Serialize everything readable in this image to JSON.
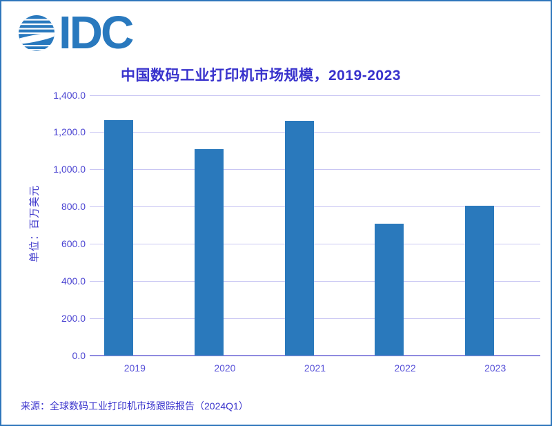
{
  "logo": {
    "text": "IDC",
    "color": "#2979BE",
    "globe_icon": "idc-striped-globe"
  },
  "chart_data": {
    "type": "bar",
    "title": "中国数码工业打印机市场规模，2019-2023",
    "ylabel": "单位：百万美元",
    "xlabel": "",
    "categories": [
      "2019",
      "2020",
      "2021",
      "2022",
      "2023"
    ],
    "values": [
      1265,
      1110,
      1260,
      710,
      805
    ],
    "ylim": [
      0,
      1400
    ],
    "ytick_interval": 200,
    "yticks": [
      "1,400.0",
      "1,200.0",
      "1,000.0",
      "800.0",
      "600.0",
      "400.0",
      "200.0",
      "0.0"
    ],
    "grid": true,
    "legend": "none",
    "bar_color": "#2A79BC",
    "grid_color": "#C9C6F3",
    "axis_line_color": "#8F8BE0",
    "title_color": "#3832CC",
    "ytick_color": "#4A43D2",
    "xtick_color": "#5751D8",
    "unit_color": "#413BCC"
  },
  "source_note": "来源：全球数码工业打印机市场跟踪报告（2024Q1）",
  "frame": {
    "border_color": "#2E76BB"
  }
}
